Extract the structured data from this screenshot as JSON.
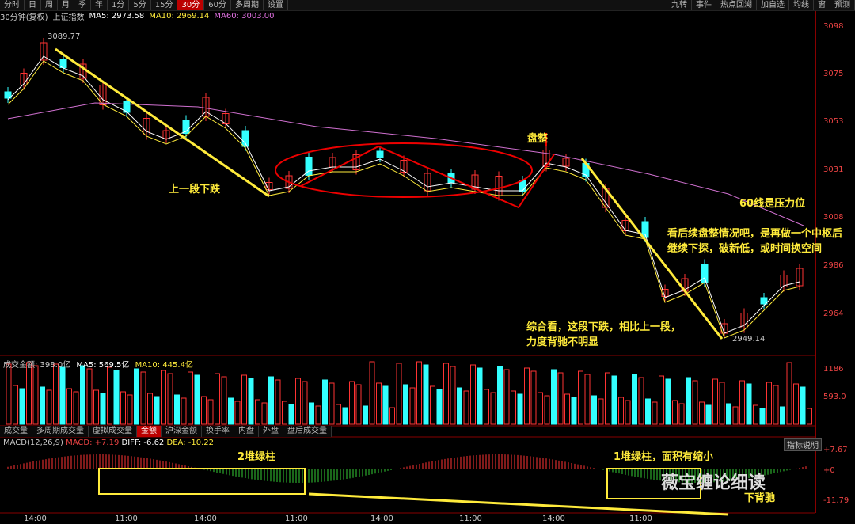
{
  "toolbar": {
    "tabs": [
      "分时",
      "日",
      "周",
      "月",
      "季",
      "年",
      "1分",
      "5分",
      "15分",
      "30分",
      "60分",
      "多周期",
      "设置"
    ],
    "active_index": 9,
    "right_tabs": [
      "九转",
      "事件",
      "热点回溯",
      "加自选",
      "均线",
      "窗",
      "预测"
    ]
  },
  "info": {
    "period": "30分钟(复权)",
    "name": "上证指数",
    "ma5": "MA5: 2973.58",
    "ma10": "MA10: 2969.14",
    "ma60": "MA60: 3003.00"
  },
  "price_axis": [
    "3098",
    "3075",
    "3053",
    "3031",
    "3008",
    "2986",
    "2964"
  ],
  "high_label": "3089.77",
  "low_label": "2949.14",
  "annotations": {
    "prev_drop": "上一段下跌",
    "consolidate": "盘整",
    "ma60_pressure": "60线是压力位",
    "outlook_line1": "看后续盘整情况吧，是再做一个中枢后",
    "outlook_line2": "继续下探，破新低，或时间换空间",
    "summary_line1": "综合看，这段下跌，相比上一段，",
    "summary_line2": "力度背驰不明显",
    "green2": "2堆绿柱",
    "green1": "1堆绿柱，面积有缩小",
    "bottom_div": "下背驰"
  },
  "volume": {
    "title": "成交金额: 398.0亿",
    "ma5": "MA5: 569.5亿",
    "ma10": "MA10: 445.4亿",
    "axis": [
      "1186",
      "593.0"
    ]
  },
  "subtabs": [
    "成交量",
    "多周期成交量",
    "虚拟成交量",
    "金额",
    "沪深金额",
    "换手率",
    "内盘",
    "外盘",
    "盘后成交量"
  ],
  "subtab_selected": 3,
  "macd": {
    "title": "MACD(12,26,9)",
    "macd": "MACD: +7.19",
    "diff": "DIFF: -6.62",
    "dea": "DEA: -10.22",
    "axis": [
      "+7.67",
      "+0",
      "-11.79"
    ],
    "help": "指标说明"
  },
  "xaxis": [
    "14:00",
    "11:00",
    "14:00",
    "11:00",
    "14:00",
    "11:00",
    "14:00",
    "11:00"
  ],
  "watermark": "薇宝缠论细读"
}
